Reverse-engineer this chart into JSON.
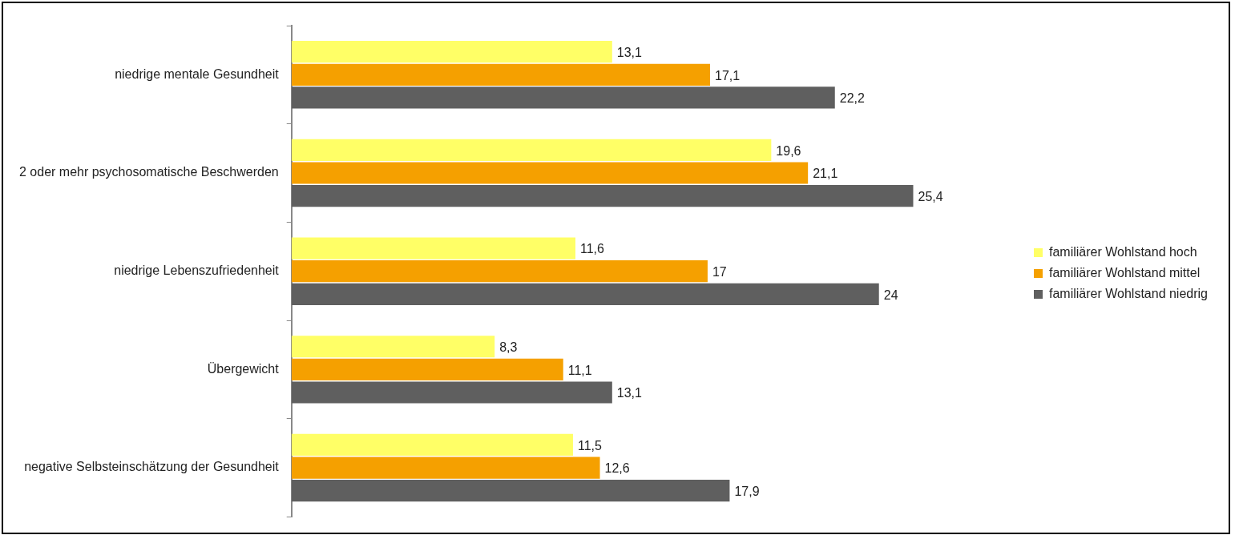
{
  "chart_data": {
    "type": "bar",
    "orientation": "horizontal",
    "legend": "right",
    "categories": [
      "niedrige mentale Gesundheit",
      "2 oder mehr psychosomatische Beschwerden",
      "niedrige Lebenszufriedenheit",
      "Übergewicht",
      "negative Selbsteinschätzung der Gesundheit"
    ],
    "series": [
      {
        "name": "familiärer Wohlstand hoch",
        "color": "#ffff66",
        "values": [
          13.1,
          19.6,
          11.6,
          8.3,
          11.5
        ],
        "value_labels": [
          "13,1",
          "19,6",
          "11,6",
          "8,3",
          "11,5"
        ]
      },
      {
        "name": "familiärer Wohlstand mittel",
        "color": "#f5a000",
        "values": [
          17.1,
          21.1,
          17,
          11.1,
          12.6
        ],
        "value_labels": [
          "17,1",
          "21,1",
          "17",
          "11,1",
          "12,6"
        ]
      },
      {
        "name": "familiärer Wohlstand niedrig",
        "color": "#5f5f5f",
        "values": [
          22.2,
          25.4,
          24,
          13.1,
          17.9
        ],
        "value_labels": [
          "22,2",
          "25,4",
          "24",
          "13,1",
          "17,9"
        ]
      }
    ]
  }
}
